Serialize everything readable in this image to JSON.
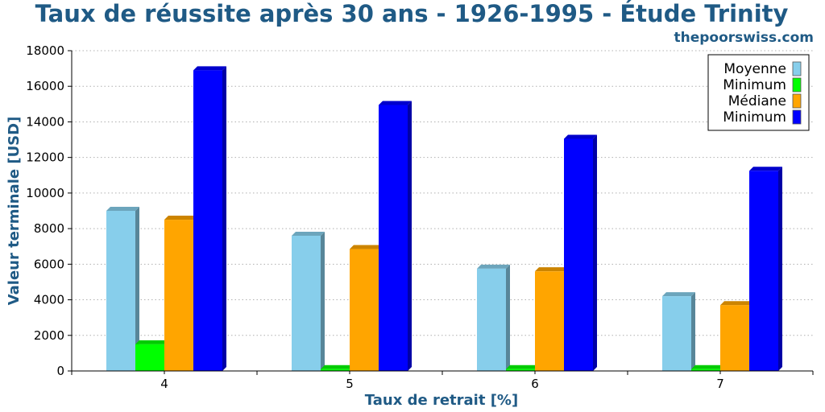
{
  "chart_data": {
    "type": "bar",
    "title": "Taux de réussite après 30 ans - 1926-1995 - Étude Trinity",
    "subtitle": "thepoorswiss.com",
    "xlabel": "Taux de retrait [%]",
    "ylabel": "Valeur terminale [USD]",
    "categories": [
      "4",
      "5",
      "6",
      "7"
    ],
    "ylim": [
      0,
      18000
    ],
    "yticks": [
      0,
      2000,
      4000,
      6000,
      8000,
      10000,
      12000,
      14000,
      16000,
      18000
    ],
    "grid": true,
    "legend_position": "top-right",
    "series": [
      {
        "name": "Moyenne",
        "color": "#87ceeb",
        "values": [
          9000,
          7600,
          5750,
          4200
        ]
      },
      {
        "name": "Minimum",
        "color": "#00ff00",
        "values": [
          1500,
          100,
          100,
          100
        ]
      },
      {
        "name": "Médiane",
        "color": "#ffa500",
        "values": [
          8500,
          6850,
          5600,
          3700
        ]
      },
      {
        "name": "Minimum",
        "color": "#0000ff",
        "values": [
          16900,
          14950,
          13050,
          11250
        ]
      }
    ]
  }
}
